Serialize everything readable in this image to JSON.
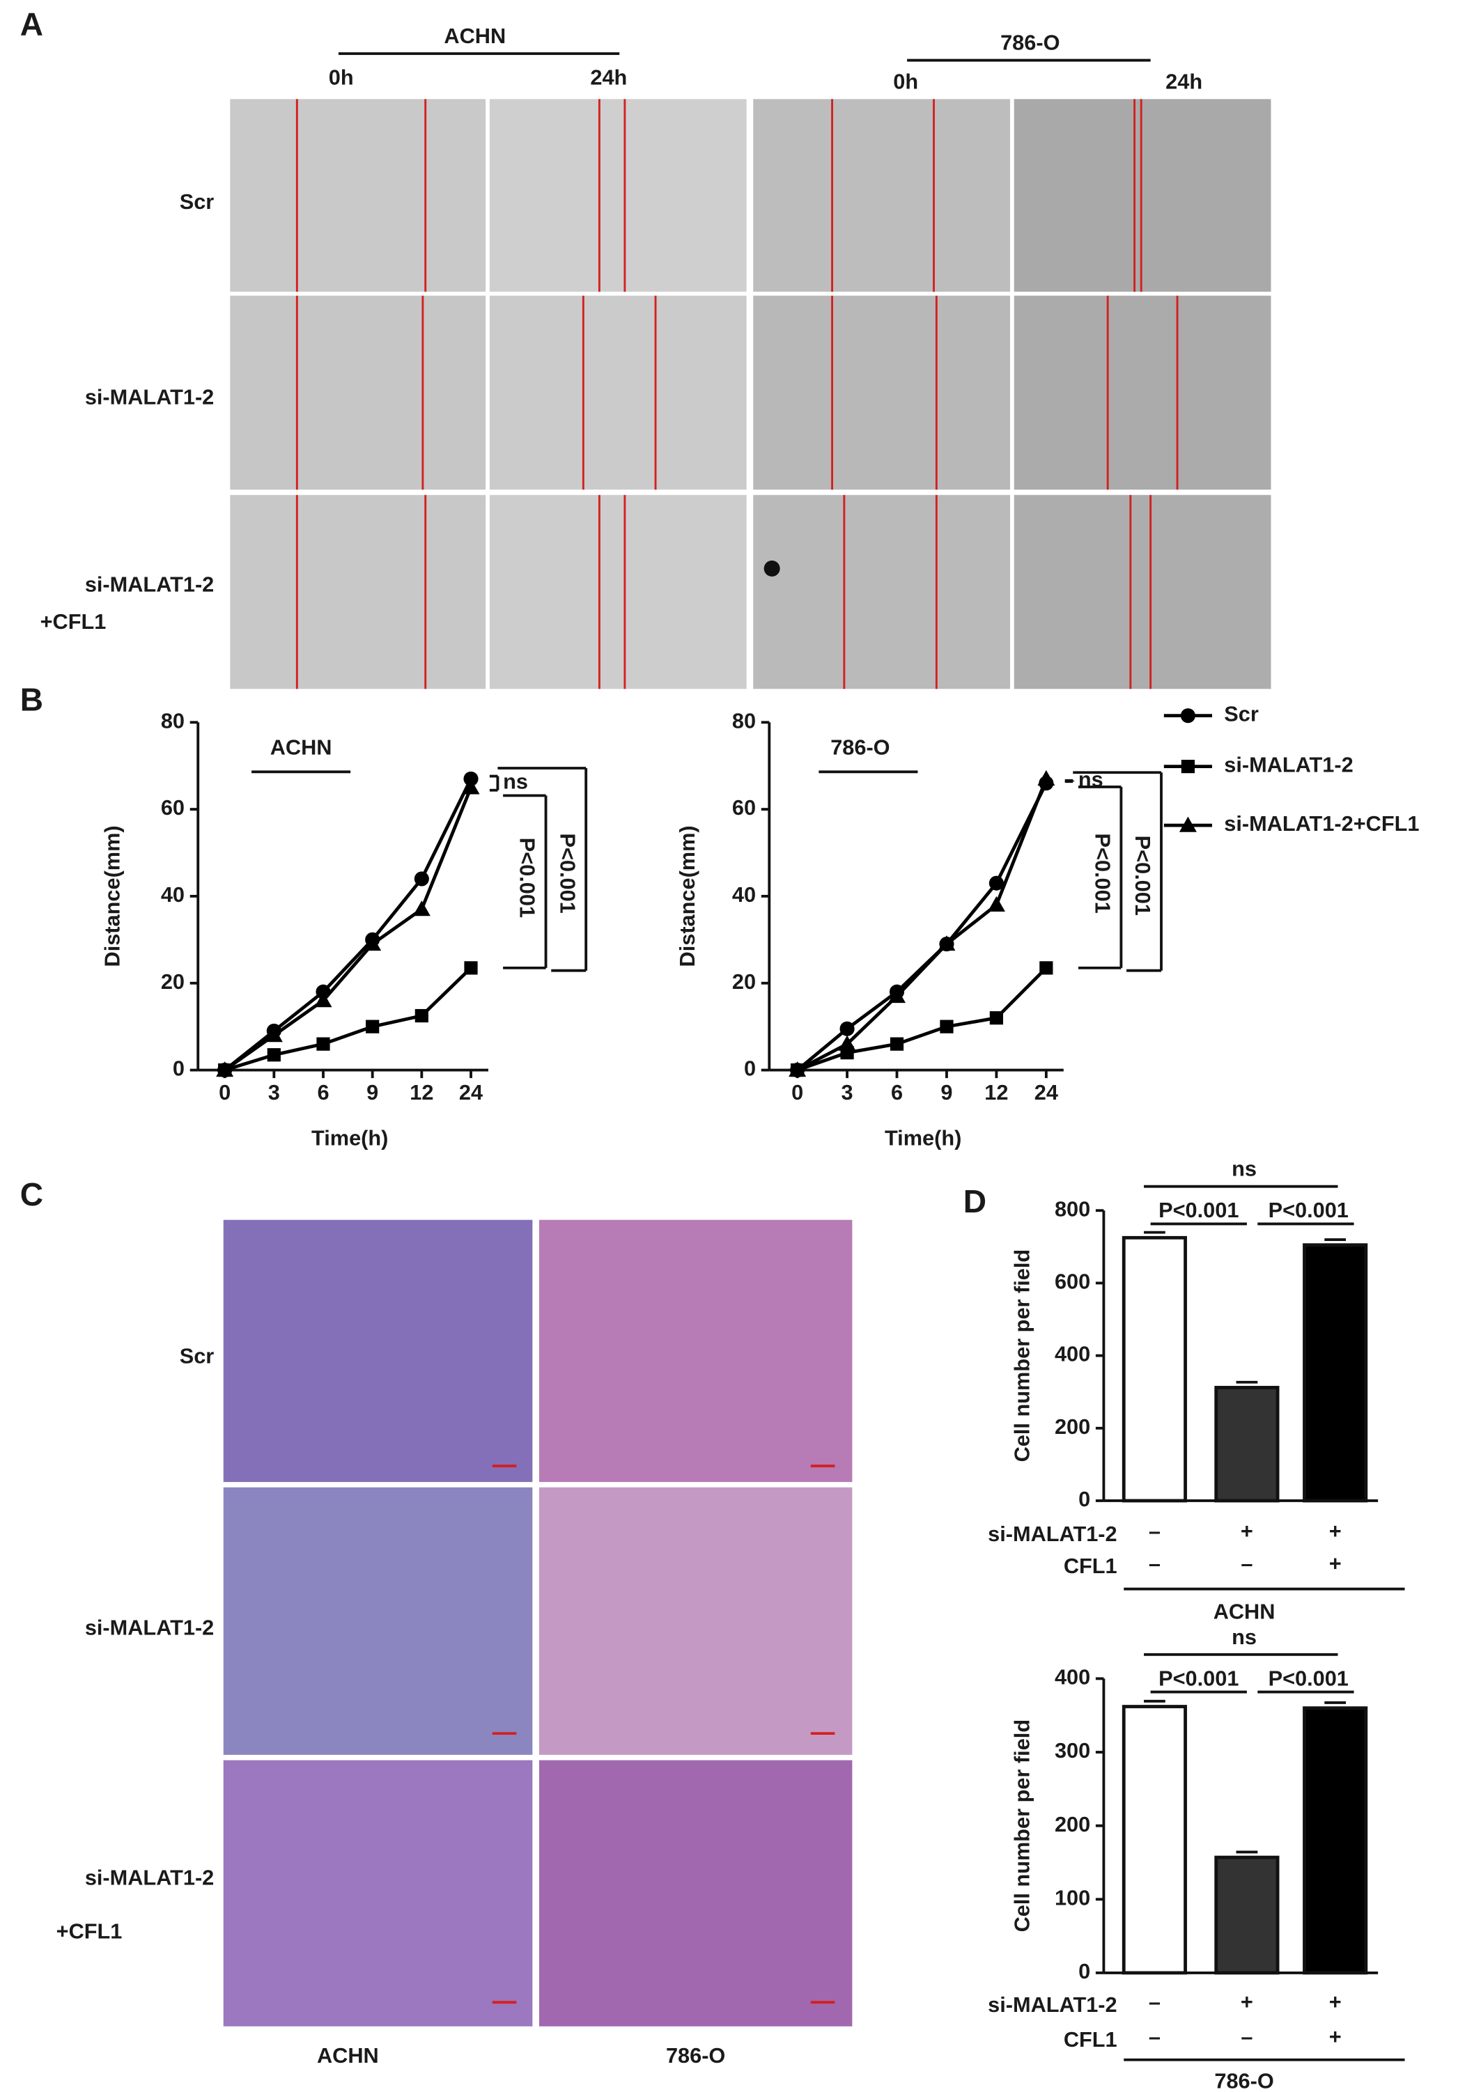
{
  "panel_a": {
    "label": "A",
    "header_left": "ACHN",
    "header_right": "786-O",
    "times": [
      "0h",
      "24h",
      "0h",
      "24h"
    ],
    "rows": [
      [
        "Scr"
      ],
      [
        "si-MALAT1-2"
      ],
      [
        "si-MALAT1-2",
        "+CFL1"
      ]
    ]
  },
  "panel_b": {
    "label": "B"
  },
  "panel_c": {
    "label": "C",
    "rows": [
      [
        "Scr"
      ],
      [
        "si-MALAT1-2"
      ],
      [
        "si-MALAT1-2",
        "+CFL1"
      ]
    ],
    "columns": [
      "ACHN",
      "786-O"
    ]
  },
  "panel_d": {
    "label": "D"
  },
  "chart_data": [
    {
      "type": "line",
      "title": "ACHN",
      "x_label": "Time(h)",
      "y_label": "Distance(mm)",
      "categories": [
        "0",
        "3",
        "6",
        "9",
        "12",
        "24"
      ],
      "ylim": [
        0,
        80
      ],
      "yticks": [
        0,
        20,
        40,
        60,
        80
      ],
      "series": [
        {
          "name": "Scr",
          "color": "#000000",
          "marker": "circle",
          "values": [
            0,
            9,
            18,
            30,
            44,
            67
          ]
        },
        {
          "name": "si-MALAT1-2",
          "color": "#000000",
          "marker": "square",
          "values": [
            0,
            3.5,
            6,
            10,
            12.5,
            23.5
          ]
        },
        {
          "name": "si-MALAT1-2+CFL1",
          "color": "#000000",
          "marker": "triangle",
          "values": [
            0,
            8,
            16,
            29,
            37,
            65
          ]
        }
      ],
      "annotations": [
        "ns",
        "P<0.001",
        "P<0.001"
      ]
    },
    {
      "type": "line",
      "title": "786-O",
      "x_label": "Time(h)",
      "y_label": "Distance(mm)",
      "categories": [
        "0",
        "3",
        "6",
        "9",
        "12",
        "24"
      ],
      "ylim": [
        0,
        80
      ],
      "yticks": [
        0,
        20,
        40,
        60,
        80
      ],
      "series": [
        {
          "name": "Scr",
          "color": "#000000",
          "marker": "circle",
          "values": [
            0,
            9.5,
            18,
            29,
            43,
            66
          ]
        },
        {
          "name": "si-MALAT1-2",
          "color": "#000000",
          "marker": "square",
          "values": [
            0,
            4,
            6,
            10,
            12,
            23.5
          ]
        },
        {
          "name": "si-MALAT1-2+CFL1",
          "color": "#000000",
          "marker": "triangle",
          "values": [
            0,
            6,
            17,
            29,
            38,
            67
          ]
        }
      ],
      "annotations": [
        "ns",
        "P<0.001",
        "P<0.001"
      ]
    },
    {
      "type": "bar",
      "title": "ACHN",
      "y_label": "Cell number per field",
      "values": [
        725,
        312,
        705
      ],
      "colors": [
        "#ffffff",
        "#333333",
        "#000000"
      ],
      "ylim": [
        0,
        800
      ],
      "yticks": [
        0,
        200,
        400,
        600,
        800
      ],
      "conditions": [
        {
          "name": "si-MALAT1-2",
          "marks": [
            "–",
            "+",
            "+"
          ]
        },
        {
          "name": "CFL1",
          "marks": [
            "–",
            "–",
            "+"
          ]
        }
      ],
      "annotations": [
        "ns",
        "P<0.001",
        "P<0.001"
      ]
    },
    {
      "type": "bar",
      "title": "786-O",
      "y_label": "Cell number per field",
      "values": [
        362,
        157,
        360
      ],
      "colors": [
        "#ffffff",
        "#333333",
        "#000000"
      ],
      "ylim": [
        0,
        400
      ],
      "yticks": [
        0,
        100,
        200,
        300,
        400
      ],
      "conditions": [
        {
          "name": "si-MALAT1-2",
          "marks": [
            "–",
            "+",
            "+"
          ]
        },
        {
          "name": "CFL1",
          "marks": [
            "–",
            "–",
            "+"
          ]
        }
      ],
      "annotations": [
        "ns",
        "P<0.001",
        "P<0.001"
      ]
    }
  ]
}
